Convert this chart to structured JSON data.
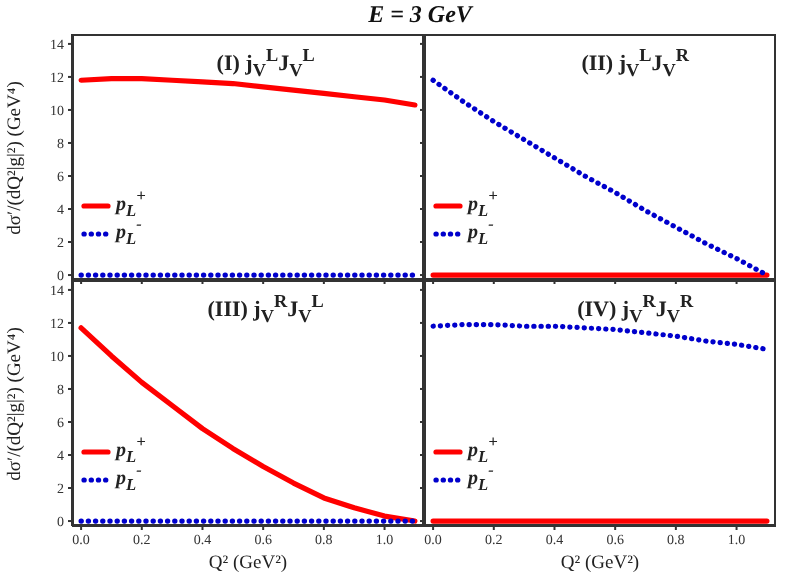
{
  "chart_data": [
    {
      "type": "line",
      "title": "(I) j$_{V}$$^{L}$J$_{V}$$^{L}$",
      "annotations": [
        "E = 3 GeV"
      ],
      "ylabel": "dσ′/(dQ²|g|²) (GeV⁴)",
      "x": [
        0,
        0.1,
        0.2,
        0.3,
        0.4,
        0.5,
        0.6,
        0.7,
        0.8,
        0.9,
        1.0,
        1.1
      ],
      "series": [
        {
          "name": "p$_{L}$$^{+}$",
          "color": "#ff0000",
          "line_style": "solid",
          "values": [
            11.8,
            11.9,
            11.9,
            11.8,
            11.7,
            11.6,
            11.4,
            11.2,
            11.0,
            10.8,
            10.6,
            10.3
          ]
        },
        {
          "name": "p$_{L}$$^{-}$",
          "color": "#0000cc",
          "line_style": "dotted",
          "values": [
            0,
            0,
            0,
            0,
            0,
            0,
            0,
            0,
            0,
            0,
            0,
            0
          ]
        }
      ],
      "xlim": [
        -0.03,
        1.13
      ],
      "ylim": [
        -0.3,
        14.6
      ],
      "xticks": [
        0,
        0.2,
        0.4,
        0.6,
        0.8,
        1.0
      ],
      "yticks": [
        0,
        2,
        4,
        6,
        8,
        10,
        12,
        14
      ],
      "tick_labels": "y",
      "legend": "bottom left"
    },
    {
      "type": "line",
      "title": "(II) j$_{V}$$^{L}$J$_{V}$$^{R}$",
      "x": [
        0,
        0.1,
        0.2,
        0.3,
        0.4,
        0.5,
        0.6,
        0.7,
        0.8,
        0.9,
        1.0,
        1.1
      ],
      "series": [
        {
          "name": "p$_{L}$$^{+}$",
          "color": "#ff0000",
          "line_style": "solid",
          "values": [
            0,
            0,
            0,
            0,
            0,
            0,
            0,
            0,
            0,
            0,
            0,
            0
          ]
        },
        {
          "name": "p$_{L}$$^{-}$",
          "color": "#0000cc",
          "line_style": "dotted",
          "values": [
            11.8,
            10.5,
            9.3,
            8.2,
            7.1,
            6.0,
            5.0,
            3.9,
            2.9,
            1.9,
            1.0,
            0
          ]
        }
      ],
      "xlim": [
        -0.03,
        1.13
      ],
      "ylim": [
        -0.3,
        14.6
      ],
      "xticks": [
        0,
        0.2,
        0.4,
        0.6,
        0.8,
        1.0
      ],
      "yticks": [
        0,
        2,
        4,
        6,
        8,
        10,
        12,
        14
      ],
      "tick_labels": false,
      "legend": "bottom left"
    },
    {
      "type": "line",
      "title": "(III) j$_{V}$$^{R}$J$_{V}$$^{L}$",
      "ylabel": "dσ′/(dQ²|g|²) (GeV⁴)",
      "xlabel": "Q² (GeV²)",
      "x": [
        0,
        0.1,
        0.2,
        0.3,
        0.4,
        0.5,
        0.6,
        0.7,
        0.8,
        0.9,
        1.0,
        1.1
      ],
      "series": [
        {
          "name": "p$_{L}$$^{+}$",
          "color": "#ff0000",
          "line_style": "solid",
          "values": [
            11.7,
            10.0,
            8.4,
            7.0,
            5.6,
            4.4,
            3.3,
            2.3,
            1.4,
            0.8,
            0.3,
            0
          ]
        },
        {
          "name": "p$_{L}$$^{-}$",
          "color": "#0000cc",
          "line_style": "dotted",
          "values": [
            0,
            0,
            0,
            0,
            0,
            0,
            0,
            0,
            0,
            0,
            0,
            0
          ]
        }
      ],
      "xlim": [
        -0.03,
        1.13
      ],
      "ylim": [
        -0.3,
        14.6
      ],
      "xticks": [
        {
          "value": 0,
          "label": "0.0"
        },
        {
          "value": 0.2,
          "label": "0.2"
        },
        {
          "value": 0.4,
          "label": "0.4"
        },
        {
          "value": 0.6,
          "label": "0.6"
        },
        {
          "value": 0.8,
          "label": "0.8"
        },
        {
          "value": 1.0,
          "label": "1.0"
        }
      ],
      "yticks": [
        0,
        2,
        4,
        6,
        8,
        10,
        12,
        14
      ],
      "legend": "bottom left"
    },
    {
      "type": "line",
      "title": "(IV) j$_{V}$$^{R}$J$_{V}$$^{R}$",
      "xlabel": "Q² (GeV²)",
      "x": [
        0,
        0.1,
        0.2,
        0.3,
        0.4,
        0.5,
        0.6,
        0.7,
        0.8,
        0.9,
        1.0,
        1.1
      ],
      "series": [
        {
          "name": "p$_{L}$$^{+}$",
          "color": "#ff0000",
          "line_style": "solid",
          "values": [
            0,
            0,
            0,
            0,
            0,
            0,
            0,
            0,
            0,
            0,
            0,
            0
          ]
        },
        {
          "name": "p$_{L}$$^{-}$",
          "color": "#0000cc",
          "line_style": "dotted",
          "values": [
            11.8,
            11.9,
            11.9,
            11.8,
            11.8,
            11.7,
            11.6,
            11.4,
            11.2,
            10.9,
            10.7,
            10.4
          ]
        }
      ],
      "xlim": [
        -0.03,
        1.13
      ],
      "ylim": [
        -0.3,
        14.6
      ],
      "xticks": [
        {
          "value": 0,
          "label": "0.0"
        },
        {
          "value": 0.2,
          "label": "0.2"
        },
        {
          "value": 0.4,
          "label": "0.4"
        },
        {
          "value": 0.6,
          "label": "0.6"
        },
        {
          "value": 0.8,
          "label": "0.8"
        },
        {
          "value": 1.0,
          "label": "1.0"
        }
      ],
      "yticks": [
        0,
        2,
        4,
        6,
        8,
        10,
        12,
        14
      ],
      "tick_labels": "x",
      "legend": "bottom left"
    }
  ]
}
